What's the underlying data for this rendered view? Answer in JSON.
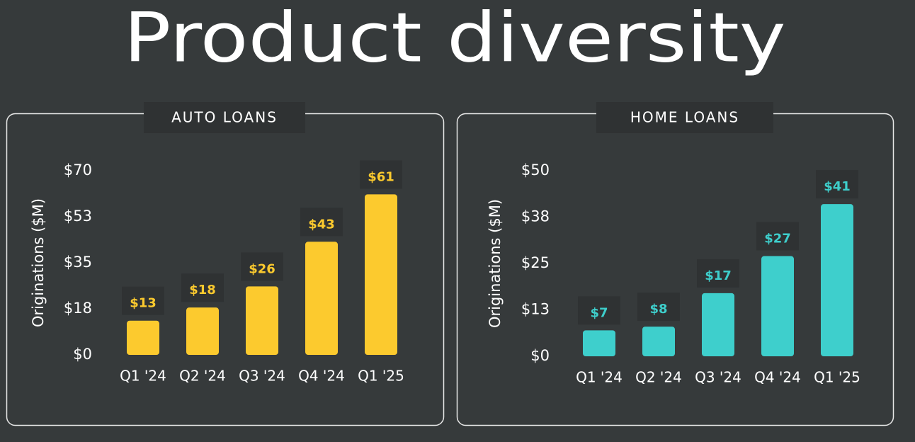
{
  "title": "Product diversity",
  "chart_data": [
    {
      "type": "bar",
      "title": "AUTO LOANS",
      "ylabel": "Originations ($M)",
      "categories": [
        "Q1 '24",
        "Q2 '24",
        "Q3 '24",
        "Q4 '24",
        "Q1 '25"
      ],
      "values": [
        13,
        18,
        26,
        43,
        61
      ],
      "value_labels": [
        "$13",
        "$18",
        "$26",
        "$43",
        "$61"
      ],
      "color": "#fcca2e",
      "ylim": [
        0,
        70
      ],
      "yticks": [
        {
          "value": 0,
          "label": "$0"
        },
        {
          "value": 17.5,
          "label": "$18"
        },
        {
          "value": 35,
          "label": "$35"
        },
        {
          "value": 52.5,
          "label": "$53"
        },
        {
          "value": 70,
          "label": "$70"
        }
      ]
    },
    {
      "type": "bar",
      "title": "HOME LOANS",
      "ylabel": "Originations ($M)",
      "categories": [
        "Q1 '24",
        "Q2 '24",
        "Q3 '24",
        "Q4 '24",
        "Q1 '25"
      ],
      "values": [
        7,
        8,
        17,
        27,
        41
      ],
      "value_labels": [
        "$7",
        "$8",
        "$17",
        "$27",
        "$41"
      ],
      "color": "#3ecfcc",
      "ylim": [
        0,
        50
      ],
      "yticks": [
        {
          "value": 0,
          "label": "$0"
        },
        {
          "value": 12.5,
          "label": "$13"
        },
        {
          "value": 25,
          "label": "$25"
        },
        {
          "value": 37.5,
          "label": "$38"
        },
        {
          "value": 50,
          "label": "$50"
        }
      ]
    }
  ]
}
